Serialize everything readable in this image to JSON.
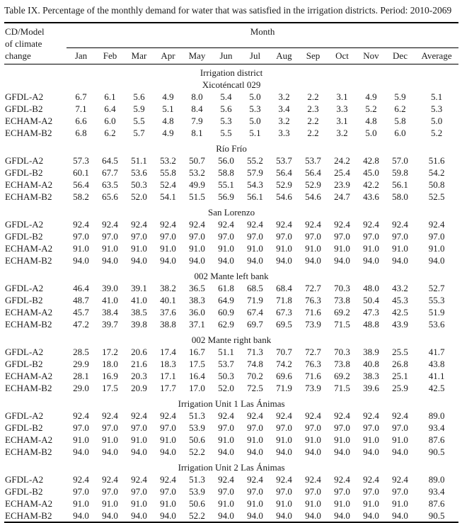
{
  "title": "Table IX. Percentage of the monthly demand for water that was satisfied in the irrigation districts. Period: 2010-2069",
  "header": {
    "corner_lines": [
      "CD/Model",
      "of climate",
      "change"
    ],
    "month_label": "Month",
    "columns": [
      "Jan",
      "Feb",
      "Mar",
      "Apr",
      "May",
      "Jun",
      "Jul",
      "Aug",
      "Sep",
      "Oct",
      "Nov",
      "Dec",
      "Average"
    ]
  },
  "group_header": "Irrigation district",
  "sections": [
    {
      "name": "Xicoténcatl 029",
      "rows": [
        {
          "model": "GFDL-A2",
          "values": [
            "6.7",
            "6.1",
            "5.6",
            "4.9",
            "8.0",
            "5.4",
            "5.0",
            "3.2",
            "2.2",
            "3.1",
            "4.9",
            "5.9",
            "5.1"
          ]
        },
        {
          "model": "GFDL-B2",
          "values": [
            "7.1",
            "6.4",
            "5.9",
            "5.1",
            "8.4",
            "5.6",
            "5.3",
            "3.4",
            "2.3",
            "3.3",
            "5.2",
            "6.2",
            "5.3"
          ]
        },
        {
          "model": "ECHAM-A2",
          "values": [
            "6.6",
            "6.0",
            "5.5",
            "4.8",
            "7.9",
            "5.3",
            "5.0",
            "3.2",
            "2.2",
            "3.1",
            "4.8",
            "5.8",
            "5.0"
          ]
        },
        {
          "model": "ECHAM-B2",
          "values": [
            "6.8",
            "6.2",
            "5.7",
            "4.9",
            "8.1",
            "5.5",
            "5.1",
            "3.3",
            "2.2",
            "3.2",
            "5.0",
            "6.0",
            "5.2"
          ]
        }
      ]
    },
    {
      "name": "Río Frío",
      "rows": [
        {
          "model": "GFDL-A2",
          "values": [
            "57.3",
            "64.5",
            "51.1",
            "53.2",
            "50.7",
            "56.0",
            "55.2",
            "53.7",
            "53.7",
            "24.2",
            "42.8",
            "57.0",
            "51.6"
          ]
        },
        {
          "model": "GFDL-B2",
          "values": [
            "60.1",
            "67.7",
            "53.6",
            "55.8",
            "53.2",
            "58.8",
            "57.9",
            "56.4",
            "56.4",
            "25.4",
            "45.0",
            "59.8",
            "54.2"
          ]
        },
        {
          "model": "ECHAM-A2",
          "values": [
            "56.4",
            "63.5",
            "50.3",
            "52.4",
            "49.9",
            "55.1",
            "54.3",
            "52.9",
            "52.9",
            "23.9",
            "42.2",
            "56.1",
            "50.8"
          ]
        },
        {
          "model": "ECHAM-B2",
          "values": [
            "58.2",
            "65.6",
            "52.0",
            "54.1",
            "51.5",
            "56.9",
            "56.1",
            "54.6",
            "54.6",
            "24.7",
            "43.6",
            "58.0",
            "52.5"
          ]
        }
      ]
    },
    {
      "name": "San Lorenzo",
      "rows": [
        {
          "model": "GFDL-A2",
          "values": [
            "92.4",
            "92.4",
            "92.4",
            "92.4",
            "92.4",
            "92.4",
            "92.4",
            "92.4",
            "92.4",
            "92.4",
            "92.4",
            "92.4",
            "92.4"
          ]
        },
        {
          "model": "GFDL-B2",
          "values": [
            "97.0",
            "97.0",
            "97.0",
            "97.0",
            "97.0",
            "97.0",
            "97.0",
            "97.0",
            "97.0",
            "97.0",
            "97.0",
            "97.0",
            "97.0"
          ]
        },
        {
          "model": "ECHAM-A2",
          "values": [
            "91.0",
            "91.0",
            "91.0",
            "91.0",
            "91.0",
            "91.0",
            "91.0",
            "91.0",
            "91.0",
            "91.0",
            "91.0",
            "91.0",
            "91.0"
          ]
        },
        {
          "model": "ECHAM-B2",
          "values": [
            "94.0",
            "94.0",
            "94.0",
            "94.0",
            "94.0",
            "94.0",
            "94.0",
            "94.0",
            "94.0",
            "94.0",
            "94.0",
            "94.0",
            "94.0"
          ]
        }
      ]
    },
    {
      "name": "002 Mante left bank",
      "rows": [
        {
          "model": "GFDL-A2",
          "values": [
            "46.4",
            "39.0",
            "39.1",
            "38.2",
            "36.5",
            "61.8",
            "68.5",
            "68.4",
            "72.7",
            "70.3",
            "48.0",
            "43.2",
            "52.7"
          ]
        },
        {
          "model": "GFDL-B2",
          "values": [
            "48.7",
            "41.0",
            "41.0",
            "40.1",
            "38.3",
            "64.9",
            "71.9",
            "71.8",
            "76.3",
            "73.8",
            "50.4",
            "45.3",
            "55.3"
          ]
        },
        {
          "model": "ECHAM-A2",
          "values": [
            "45.7",
            "38.4",
            "38.5",
            "37.6",
            "36.0",
            "60.9",
            "67.4",
            "67.3",
            "71.6",
            "69.2",
            "47.3",
            "42.5",
            "51.9"
          ]
        },
        {
          "model": "ECHAM-B2",
          "values": [
            "47.2",
            "39.7",
            "39.8",
            "38.8",
            "37.1",
            "62.9",
            "69.7",
            "69.5",
            "73.9",
            "71.5",
            "48.8",
            "43.9",
            "53.6"
          ]
        }
      ]
    },
    {
      "name": "002 Mante right bank",
      "rows": [
        {
          "model": "GFDL-A2",
          "values": [
            "28.5",
            "17.2",
            "20.6",
            "17.4",
            "16.7",
            "51.1",
            "71.3",
            "70.7",
            "72.7",
            "70.3",
            "38.9",
            "25.5",
            "41.7"
          ]
        },
        {
          "model": "GFDL-B2",
          "values": [
            "29.9",
            "18.0",
            "21.6",
            "18.3",
            "17.5",
            "53.7",
            "74.8",
            "74.2",
            "76.3",
            "73.8",
            "40.8",
            "26.8",
            "43.8"
          ]
        },
        {
          "model": "ECHAM-A2",
          "values": [
            "28.1",
            "16.9",
            "20.3",
            "17.1",
            "16.4",
            "50.3",
            "70.2",
            "69.6",
            "71.6",
            "69.2",
            "38.3",
            "25.1",
            "41.1"
          ]
        },
        {
          "model": "ECHAM-B2",
          "values": [
            "29.0",
            "17.5",
            "20.9",
            "17.7",
            "17.0",
            "52.0",
            "72.5",
            "71.9",
            "73.9",
            "71.5",
            "39.6",
            "25.9",
            "42.5"
          ]
        }
      ]
    },
    {
      "name": "Irrigation Unit 1 Las Ánimas",
      "rows": [
        {
          "model": "GFDL-A2",
          "values": [
            "92.4",
            "92.4",
            "92.4",
            "92.4",
            "51.3",
            "92.4",
            "92.4",
            "92.4",
            "92.4",
            "92.4",
            "92.4",
            "92.4",
            "89.0"
          ]
        },
        {
          "model": "GFDL-B2",
          "values": [
            "97.0",
            "97.0",
            "97.0",
            "97.0",
            "53.9",
            "97.0",
            "97.0",
            "97.0",
            "97.0",
            "97.0",
            "97.0",
            "97.0",
            "93.4"
          ]
        },
        {
          "model": "ECHAM-A2",
          "values": [
            "91.0",
            "91.0",
            "91.0",
            "91.0",
            "50.6",
            "91.0",
            "91.0",
            "91.0",
            "91.0",
            "91.0",
            "91.0",
            "91.0",
            "87.6"
          ]
        },
        {
          "model": "ECHAM-B2",
          "values": [
            "94.0",
            "94.0",
            "94.0",
            "94.0",
            "52.2",
            "94.0",
            "94.0",
            "94.0",
            "94.0",
            "94.0",
            "94.0",
            "94.0",
            "90.5"
          ]
        }
      ]
    },
    {
      "name": "Irrigation Unit 2 Las Ánimas",
      "rows": [
        {
          "model": "GFDL-A2",
          "values": [
            "92.4",
            "92.4",
            "92.4",
            "92.4",
            "51.3",
            "92.4",
            "92.4",
            "92.4",
            "92.4",
            "92.4",
            "92.4",
            "92.4",
            "89.0"
          ]
        },
        {
          "model": "GFDL-B2",
          "values": [
            "97.0",
            "97.0",
            "97.0",
            "97.0",
            "53.9",
            "97.0",
            "97.0",
            "97.0",
            "97.0",
            "97.0",
            "97.0",
            "97.0",
            "93.4"
          ]
        },
        {
          "model": "ECHAM-A2",
          "values": [
            "91.0",
            "91.0",
            "91.0",
            "91.0",
            "50.6",
            "91.0",
            "91.0",
            "91.0",
            "91.0",
            "91.0",
            "91.0",
            "91.0",
            "87.6"
          ]
        },
        {
          "model": "ECHAM-B2",
          "values": [
            "94.0",
            "94.0",
            "94.0",
            "94.0",
            "52.2",
            "94.0",
            "94.0",
            "94.0",
            "94.0",
            "94.0",
            "94.0",
            "94.0",
            "90.5"
          ]
        }
      ]
    }
  ]
}
